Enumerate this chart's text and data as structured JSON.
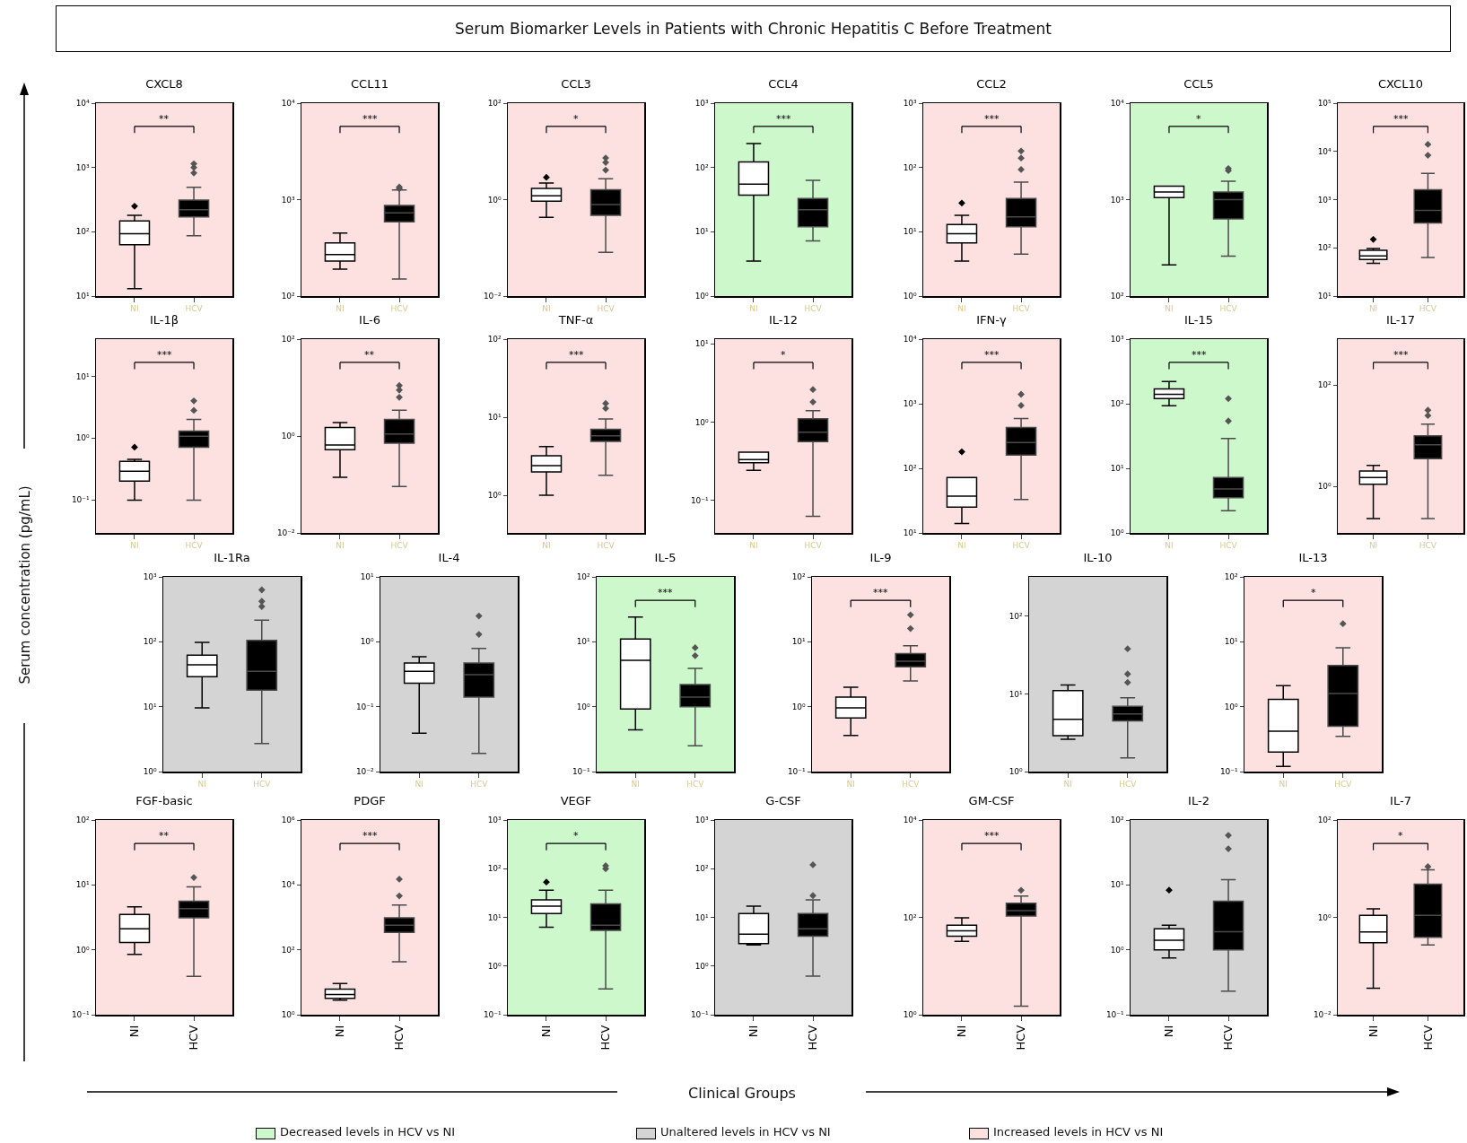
{
  "chart_data": [
    {
      "type": "box",
      "title": "CXCL8",
      "categories": [
        "NI",
        "HCV"
      ],
      "colors": [
        "#ffffff",
        "#000000"
      ],
      "boxes": [
        {
          "low": 13,
          "q1": 63,
          "median": 93,
          "q3": 148,
          "high": 180,
          "outliers": [
            250
          ]
        },
        {
          "low": 87,
          "q1": 170,
          "median": 220,
          "q3": 310,
          "high": 490,
          "outliers": [
            820,
            1000,
            1140
          ]
        }
      ],
      "log": true,
      "ylim": [
        10,
        10000
      ],
      "yticks": [
        {
          "value": 10,
          "label": "10¹"
        },
        {
          "value": 100,
          "label": "10²"
        },
        {
          "value": 1000,
          "label": "10³"
        },
        {
          "value": 10000,
          "label": "10⁴"
        }
      ],
      "grid": false,
      "marker": "diamond",
      "annotations": [
        "**"
      ],
      "bands": [
        {
          "axis": "y",
          "from": 10,
          "to": 10000,
          "color": "#fde0e0"
        }
      ]
    },
    {
      "type": "box",
      "title": "CCL11",
      "categories": [
        "NI",
        "HCV"
      ],
      "colors": [
        "#ffffff",
        "#000000"
      ],
      "boxes": [
        {
          "low": 190,
          "q1": 230,
          "median": 270,
          "q3": 355,
          "high": 450
        },
        {
          "low": 150,
          "q1": 590,
          "median": 730,
          "q3": 870,
          "high": 1260,
          "outliers": [
            1300,
            1350
          ]
        }
      ],
      "log": true,
      "ylim": [
        100,
        10000
      ],
      "yticks": [
        {
          "value": 100,
          "label": "10²"
        },
        {
          "value": 1000,
          "label": "10³"
        },
        {
          "value": 10000,
          "label": "10⁴"
        }
      ],
      "grid": false,
      "marker": "diamond",
      "annotations": [
        "***"
      ],
      "bands": [
        {
          "axis": "y",
          "from": 100,
          "to": 10000,
          "color": "#fde0e0"
        }
      ]
    },
    {
      "type": "box",
      "title": "CCL3",
      "categories": [
        "NI",
        "HCV"
      ],
      "colors": [
        "#ffffff",
        "#000000"
      ],
      "boxes": [
        {
          "low": 0.43,
          "q1": 0.93,
          "median": 1.2,
          "q3": 1.7,
          "high": 2.2,
          "outliers": [
            2.9
          ]
        },
        {
          "low": 0.081,
          "q1": 0.47,
          "median": 0.79,
          "q3": 1.6,
          "high": 2.7,
          "outliers": [
            4.1,
            5.9,
            7.3
          ]
        }
      ],
      "log": true,
      "ylim": [
        0.01,
        100
      ],
      "yticks": [
        {
          "value": 0.01,
          "label": "10⁻²"
        },
        {
          "value": 1,
          "label": "10⁰"
        },
        {
          "value": 100,
          "label": "10²"
        }
      ],
      "grid": false,
      "marker": "diamond",
      "annotations": [
        "*"
      ],
      "bands": [
        {
          "axis": "y",
          "from": 0.01,
          "to": 100,
          "color": "#fde0e0"
        }
      ]
    },
    {
      "type": "box",
      "title": "CCL4",
      "categories": [
        "NI",
        "HCV"
      ],
      "colors": [
        "#ffffff",
        "#000000"
      ],
      "boxes": [
        {
          "low": 3.5,
          "q1": 37,
          "median": 55,
          "q3": 122,
          "high": 235
        },
        {
          "low": 7.2,
          "q1": 12,
          "median": 22,
          "q3": 33,
          "high": 63
        }
      ],
      "log": true,
      "ylim": [
        1,
        1000
      ],
      "yticks": [
        {
          "value": 1,
          "label": "10⁰"
        },
        {
          "value": 10,
          "label": "10¹"
        },
        {
          "value": 100,
          "label": "10²"
        },
        {
          "value": 1000,
          "label": "10³"
        }
      ],
      "grid": false,
      "annotations": [
        "***"
      ],
      "bands": [
        {
          "axis": "y",
          "from": 1,
          "to": 1000,
          "color": "#ccf8cc"
        }
      ]
    },
    {
      "type": "box",
      "title": "CCL2",
      "categories": [
        "NI",
        "HCV"
      ],
      "colors": [
        "#ffffff",
        "#000000"
      ],
      "boxes": [
        {
          "low": 3.5,
          "q1": 6.7,
          "median": 9.3,
          "q3": 13,
          "high": 18,
          "outliers": [
            28
          ]
        },
        {
          "low": 4.5,
          "q1": 12,
          "median": 17,
          "q3": 33,
          "high": 59,
          "outliers": [
            93,
            140,
            180
          ]
        }
      ],
      "log": true,
      "ylim": [
        1,
        1000
      ],
      "yticks": [
        {
          "value": 1,
          "label": "10⁰"
        },
        {
          "value": 10,
          "label": "10¹"
        },
        {
          "value": 100,
          "label": "10²"
        },
        {
          "value": 1000,
          "label": "10³"
        }
      ],
      "grid": false,
      "marker": "diamond",
      "annotations": [
        "***"
      ],
      "bands": [
        {
          "axis": "y",
          "from": 1,
          "to": 1000,
          "color": "#fde0e0"
        }
      ]
    },
    {
      "type": "box",
      "title": "CCL5",
      "categories": [
        "NI",
        "HCV"
      ],
      "colors": [
        "#ffffff",
        "#000000"
      ],
      "boxes": [
        {
          "low": 210,
          "q1": 1050,
          "median": 1200,
          "q3": 1380,
          "high": 1380
        },
        {
          "low": 260,
          "q1": 630,
          "median": 1000,
          "q3": 1200,
          "high": 1550,
          "outliers": [
            2000,
            2100
          ]
        }
      ],
      "log": true,
      "ylim": [
        100,
        10000
      ],
      "yticks": [
        {
          "value": 100,
          "label": "10²"
        },
        {
          "value": 1000,
          "label": "10³"
        },
        {
          "value": 10000,
          "label": "10⁴"
        }
      ],
      "grid": false,
      "marker": "diamond",
      "annotations": [
        "*"
      ],
      "bands": [
        {
          "axis": "y",
          "from": 100,
          "to": 10000,
          "color": "#ccf8cc"
        }
      ]
    },
    {
      "type": "box",
      "title": "CXCL10",
      "categories": [
        "NI",
        "HCV"
      ],
      "colors": [
        "#ffffff",
        "#000000"
      ],
      "boxes": [
        {
          "low": 48,
          "q1": 57,
          "median": 68,
          "q3": 89,
          "high": 97,
          "outliers": [
            150
          ]
        },
        {
          "low": 63,
          "q1": 330,
          "median": 600,
          "q3": 1600,
          "high": 3500,
          "outliers": [
            8300,
            14000
          ]
        }
      ],
      "log": true,
      "ylim": [
        10,
        100000
      ],
      "yticks": [
        {
          "value": 10,
          "label": "10¹"
        },
        {
          "value": 100,
          "label": "10²"
        },
        {
          "value": 1000,
          "label": "10³"
        },
        {
          "value": 10000,
          "label": "10⁴"
        },
        {
          "value": 100000,
          "label": "10⁵"
        }
      ],
      "grid": false,
      "marker": "diamond",
      "annotations": [
        "***"
      ],
      "bands": [
        {
          "axis": "y",
          "from": 10,
          "to": 100000,
          "color": "#fde0e0"
        }
      ]
    },
    {
      "type": "box",
      "title": "IL-1β",
      "categories": [
        "NI",
        "HCV"
      ],
      "colors": [
        "#ffffff",
        "#000000"
      ],
      "boxes": [
        {
          "low": 0.098,
          "q1": 0.2,
          "median": 0.29,
          "q3": 0.42,
          "high": 0.45,
          "outliers": [
            0.71
          ]
        },
        {
          "low": 0.098,
          "q1": 0.71,
          "median": 1.07,
          "q3": 1.3,
          "high": 2.0,
          "outliers": [
            2.8,
            4.0
          ]
        }
      ],
      "log": true,
      "ylim": [
        0.029,
        40
      ],
      "yticks": [
        {
          "value": 0.1,
          "label": "10⁻¹"
        },
        {
          "value": 1,
          "label": "10⁰"
        },
        {
          "value": 10,
          "label": "10¹"
        }
      ],
      "grid": false,
      "marker": "diamond",
      "annotations": [
        "***"
      ],
      "bands": [
        {
          "axis": "y",
          "from": 0.029,
          "to": 40,
          "color": "#fde0e0"
        }
      ]
    },
    {
      "type": "box",
      "title": "IL-6",
      "categories": [
        "NI",
        "HCV"
      ],
      "colors": [
        "#ffffff",
        "#000000"
      ],
      "boxes": [
        {
          "low": 0.14,
          "q1": 0.52,
          "median": 0.65,
          "q3": 1.5,
          "high": 1.9
        },
        {
          "low": 0.091,
          "q1": 0.71,
          "median": 1.1,
          "q3": 2.2,
          "high": 3.4,
          "outliers": [
            6.3,
            8.9,
            11
          ]
        }
      ],
      "log": true,
      "ylim": [
        0.01,
        100
      ],
      "yticks": [
        {
          "value": 0.01,
          "label": "10⁻²"
        },
        {
          "value": 1,
          "label": "10⁰"
        },
        {
          "value": 100,
          "label": "10²"
        }
      ],
      "grid": false,
      "marker": "diamond",
      "annotations": [
        "**"
      ],
      "bands": [
        {
          "axis": "y",
          "from": 0.01,
          "to": 100,
          "color": "#fde0e0"
        }
      ]
    },
    {
      "type": "box",
      "title": "TNF-α",
      "categories": [
        "NI",
        "HCV"
      ],
      "colors": [
        "#ffffff",
        "#000000"
      ],
      "boxes": [
        {
          "low": 1.0,
          "q1": 2.0,
          "median": 2.4,
          "q3": 3.2,
          "high": 4.2
        },
        {
          "low": 1.8,
          "q1": 4.9,
          "median": 5.8,
          "q3": 7.0,
          "high": 9.5,
          "outliers": [
            13,
            15
          ]
        }
      ],
      "log": true,
      "ylim": [
        0.33,
        100
      ],
      "yticks": [
        {
          "value": 1,
          "label": "10⁰"
        },
        {
          "value": 10,
          "label": "10¹"
        },
        {
          "value": 100,
          "label": "10²"
        }
      ],
      "grid": false,
      "marker": "diamond",
      "annotations": [
        "***"
      ],
      "bands": [
        {
          "axis": "y",
          "from": 0.33,
          "to": 100,
          "color": "#fde0e0"
        }
      ]
    },
    {
      "type": "box",
      "title": "IL-12",
      "categories": [
        "NI",
        "HCV"
      ],
      "colors": [
        "#ffffff",
        "#000000"
      ],
      "boxes": [
        {
          "low": 0.24,
          "q1": 0.3,
          "median": 0.33,
          "q3": 0.41,
          "high": 0.41
        },
        {
          "low": 0.062,
          "q1": 0.56,
          "median": 0.74,
          "q3": 1.1,
          "high": 1.4,
          "outliers": [
            1.8,
            2.6
          ]
        }
      ],
      "log": true,
      "ylim": [
        0.038,
        11.5
      ],
      "yticks": [
        {
          "value": 0.1,
          "label": "10⁻¹"
        },
        {
          "value": 1,
          "label": "10⁰"
        },
        {
          "value": 10,
          "label": "10¹"
        }
      ],
      "grid": false,
      "marker": "diamond",
      "annotations": [
        "*"
      ],
      "bands": [
        {
          "axis": "y",
          "from": 0.038,
          "to": 11.5,
          "color": "#fde0e0"
        }
      ]
    },
    {
      "type": "box",
      "title": "IFN-γ",
      "categories": [
        "NI",
        "HCV"
      ],
      "colors": [
        "#ffffff",
        "#000000"
      ],
      "boxes": [
        {
          "low": 14,
          "q1": 25,
          "median": 37,
          "q3": 72,
          "high": 72,
          "outliers": [
            180
          ]
        },
        {
          "low": 33,
          "q1": 160,
          "median": 250,
          "q3": 430,
          "high": 590,
          "outliers": [
            940,
            1400
          ]
        }
      ],
      "log": true,
      "ylim": [
        10,
        10000
      ],
      "yticks": [
        {
          "value": 10,
          "label": "10¹"
        },
        {
          "value": 100,
          "label": "10²"
        },
        {
          "value": 1000,
          "label": "10³"
        },
        {
          "value": 10000,
          "label": "10⁴"
        }
      ],
      "grid": false,
      "marker": "diamond",
      "annotations": [
        "***"
      ],
      "bands": [
        {
          "axis": "y",
          "from": 10,
          "to": 10000,
          "color": "#fde0e0"
        }
      ]
    },
    {
      "type": "box",
      "title": "IL-15",
      "categories": [
        "NI",
        "HCV"
      ],
      "colors": [
        "#ffffff",
        "#000000"
      ],
      "boxes": [
        {
          "low": 93,
          "q1": 120,
          "median": 140,
          "q3": 170,
          "high": 220
        },
        {
          "low": 2.2,
          "q1": 3.5,
          "median": 4.8,
          "q3": 7.2,
          "high": 29,
          "outliers": [
            54,
            120
          ]
        }
      ],
      "log": true,
      "ylim": [
        1,
        1000
      ],
      "yticks": [
        {
          "value": 1,
          "label": "10⁰"
        },
        {
          "value": 10,
          "label": "10¹"
        },
        {
          "value": 100,
          "label": "10²"
        },
        {
          "value": 1000,
          "label": "10³"
        }
      ],
      "grid": false,
      "marker": "diamond",
      "annotations": [
        "***"
      ],
      "bands": [
        {
          "axis": "y",
          "from": 1,
          "to": 1000,
          "color": "#ccf8cc"
        }
      ]
    },
    {
      "type": "box",
      "title": "IL-17",
      "categories": [
        "NI",
        "HCV"
      ],
      "colors": [
        "#ffffff",
        "#000000"
      ],
      "boxes": [
        {
          "low": 0.23,
          "q1": 1.1,
          "median": 1.5,
          "q3": 2.0,
          "high": 2.6
        },
        {
          "low": 0.23,
          "q1": 3.5,
          "median": 6.6,
          "q3": 10,
          "high": 17,
          "outliers": [
            25,
            32
          ]
        }
      ],
      "log": true,
      "ylim": [
        0.12,
        810
      ],
      "yticks": [
        {
          "value": 1,
          "label": "10⁰"
        },
        {
          "value": 100,
          "label": "10²"
        }
      ],
      "grid": false,
      "marker": "diamond",
      "annotations": [
        "***"
      ],
      "bands": [
        {
          "axis": "y",
          "from": 0.12,
          "to": 810,
          "color": "#fde0e0"
        }
      ]
    },
    {
      "type": "box",
      "title": "IL-1Ra",
      "categories": [
        "NI",
        "HCV"
      ],
      "colors": [
        "#ffffff",
        "#000000"
      ],
      "boxes": [
        {
          "low": 9.6,
          "q1": 29,
          "median": 44,
          "q3": 62,
          "high": 98
        },
        {
          "low": 2.7,
          "q1": 18,
          "median": 35,
          "q3": 105,
          "high": 215,
          "outliers": [
            350,
            420,
            630
          ]
        }
      ],
      "log": true,
      "ylim": [
        1,
        1000
      ],
      "yticks": [
        {
          "value": 1,
          "label": "10⁰"
        },
        {
          "value": 10,
          "label": "10¹"
        },
        {
          "value": 100,
          "label": "10²"
        },
        {
          "value": 1000,
          "label": "10³"
        }
      ],
      "grid": false,
      "marker": "diamond",
      "bands": [
        {
          "axis": "y",
          "from": 1,
          "to": 1000,
          "color": "#d4d4d4"
        }
      ]
    },
    {
      "type": "box",
      "title": "IL-4",
      "categories": [
        "NI",
        "HCV"
      ],
      "colors": [
        "#ffffff",
        "#000000"
      ],
      "boxes": [
        {
          "low": 0.039,
          "q1": 0.23,
          "median": 0.35,
          "q3": 0.47,
          "high": 0.59
        },
        {
          "low": 0.019,
          "q1": 0.14,
          "median": 0.31,
          "q3": 0.47,
          "high": 0.79,
          "outliers": [
            1.3,
            2.5
          ]
        }
      ],
      "log": true,
      "ylim": [
        0.01,
        10
      ],
      "yticks": [
        {
          "value": 0.01,
          "label": "10⁻²"
        },
        {
          "value": 0.1,
          "label": "10⁻¹"
        },
        {
          "value": 1,
          "label": "10⁰"
        },
        {
          "value": 10,
          "label": "10¹"
        }
      ],
      "grid": false,
      "marker": "diamond",
      "bands": [
        {
          "axis": "y",
          "from": 0.01,
          "to": 10,
          "color": "#d4d4d4"
        }
      ]
    },
    {
      "type": "box",
      "title": "IL-5",
      "categories": [
        "NI",
        "HCV"
      ],
      "colors": [
        "#ffffff",
        "#000000"
      ],
      "boxes": [
        {
          "low": 0.44,
          "q1": 0.92,
          "median": 5.2,
          "q3": 11,
          "high": 24
        },
        {
          "low": 0.25,
          "q1": 1.0,
          "median": 1.4,
          "q3": 2.2,
          "high": 3.9,
          "outliers": [
            6.1,
            8.1
          ]
        }
      ],
      "log": true,
      "ylim": [
        0.1,
        100
      ],
      "yticks": [
        {
          "value": 0.1,
          "label": "10⁻¹"
        },
        {
          "value": 1,
          "label": "10⁰"
        },
        {
          "value": 10,
          "label": "10¹"
        },
        {
          "value": 100,
          "label": "10²"
        }
      ],
      "grid": false,
      "marker": "diamond",
      "annotations": [
        "***"
      ],
      "bands": [
        {
          "axis": "y",
          "from": 0.1,
          "to": 100,
          "color": "#ccf8cc"
        }
      ]
    },
    {
      "type": "box",
      "title": "IL-9",
      "categories": [
        "NI",
        "HCV"
      ],
      "colors": [
        "#ffffff",
        "#000000"
      ],
      "boxes": [
        {
          "low": 0.36,
          "q1": 0.67,
          "median": 0.96,
          "q3": 1.4,
          "high": 2.0
        },
        {
          "low": 2.5,
          "q1": 4.1,
          "median": 5.0,
          "q3": 6.6,
          "high": 8.7,
          "outliers": [
            16,
            26
          ]
        }
      ],
      "log": true,
      "ylim": [
        0.1,
        100
      ],
      "yticks": [
        {
          "value": 0.1,
          "label": "10⁻¹"
        },
        {
          "value": 1,
          "label": "10⁰"
        },
        {
          "value": 10,
          "label": "10¹"
        },
        {
          "value": 100,
          "label": "10²"
        }
      ],
      "grid": false,
      "marker": "diamond",
      "annotations": [
        "***"
      ],
      "bands": [
        {
          "axis": "y",
          "from": 0.1,
          "to": 100,
          "color": "#fde0e0"
        }
      ]
    },
    {
      "type": "box",
      "title": "IL-10",
      "categories": [
        "NI",
        "HCV"
      ],
      "colors": [
        "#ffffff",
        "#000000"
      ],
      "boxes": [
        {
          "low": 2.6,
          "q1": 2.9,
          "median": 4.7,
          "q3": 11,
          "high": 13
        },
        {
          "low": 1.5,
          "q1": 4.5,
          "median": 5.5,
          "q3": 6.9,
          "high": 8.9,
          "outliers": [
            14,
            18,
            38
          ]
        }
      ],
      "log": true,
      "ylim": [
        1,
        320
      ],
      "yticks": [
        {
          "value": 1,
          "label": "10⁰"
        },
        {
          "value": 10,
          "label": "10¹"
        },
        {
          "value": 100,
          "label": "10²"
        }
      ],
      "grid": false,
      "marker": "diamond",
      "bands": [
        {
          "axis": "y",
          "from": 1,
          "to": 320,
          "color": "#d4d4d4"
        }
      ]
    },
    {
      "type": "box",
      "title": "IL-13",
      "categories": [
        "NI",
        "HCV"
      ],
      "colors": [
        "#ffffff",
        "#000000"
      ],
      "boxes": [
        {
          "low": 0.12,
          "q1": 0.2,
          "median": 0.42,
          "q3": 1.3,
          "high": 2.1
        },
        {
          "low": 0.35,
          "q1": 0.5,
          "median": 1.6,
          "q3": 4.3,
          "high": 8.1,
          "outliers": [
            19
          ]
        }
      ],
      "log": true,
      "ylim": [
        0.1,
        100
      ],
      "yticks": [
        {
          "value": 0.1,
          "label": "10⁻¹"
        },
        {
          "value": 1,
          "label": "10⁰"
        },
        {
          "value": 10,
          "label": "10¹"
        },
        {
          "value": 100,
          "label": "10²"
        }
      ],
      "grid": false,
      "marker": "diamond",
      "annotations": [
        "*"
      ],
      "bands": [
        {
          "axis": "y",
          "from": 0.1,
          "to": 100,
          "color": "#fde0e0"
        }
      ]
    },
    {
      "type": "box",
      "title": "FGF-basic",
      "categories": [
        "NI",
        "HCV"
      ],
      "colors": [
        "#ffffff",
        "#000000"
      ],
      "boxes": [
        {
          "low": 0.85,
          "q1": 1.3,
          "median": 2.1,
          "q3": 3.5,
          "high": 4.6
        },
        {
          "low": 0.39,
          "q1": 3.1,
          "median": 4.3,
          "q3": 5.6,
          "high": 9.3,
          "outliers": [
            13
          ]
        }
      ],
      "log": true,
      "ylim": [
        0.1,
        100
      ],
      "yticks": [
        {
          "value": 0.1,
          "label": "10⁻¹"
        },
        {
          "value": 1,
          "label": "10⁰"
        },
        {
          "value": 10,
          "label": "10¹"
        },
        {
          "value": 100,
          "label": "10²"
        }
      ],
      "grid": false,
      "marker": "diamond",
      "annotations": [
        "**"
      ],
      "bands": [
        {
          "axis": "y",
          "from": 0.1,
          "to": 100,
          "color": "#fde0e0"
        }
      ]
    },
    {
      "type": "box",
      "title": "PDGF",
      "categories": [
        "NI",
        "HCV"
      ],
      "colors": [
        "#ffffff",
        "#000000"
      ],
      "boxes": [
        {
          "low": 2.8,
          "q1": 3.2,
          "median": 4.2,
          "q3": 6.1,
          "high": 9.1
        },
        {
          "low": 43,
          "q1": 345,
          "median": 575,
          "q3": 970,
          "high": 2400,
          "outliers": [
            4600,
            15000
          ]
        }
      ],
      "log": true,
      "ylim": [
        1,
        1000000
      ],
      "yticks": [
        {
          "value": 1,
          "label": "10⁰"
        },
        {
          "value": 100,
          "label": "10²"
        },
        {
          "value": 10000,
          "label": "10⁴"
        },
        {
          "value": 1000000,
          "label": "10⁶"
        }
      ],
      "grid": false,
      "marker": "diamond",
      "annotations": [
        "***"
      ],
      "bands": [
        {
          "axis": "y",
          "from": 1,
          "to": 1000000,
          "color": "#fde0e0"
        }
      ]
    },
    {
      "type": "box",
      "title": "VEGF",
      "categories": [
        "NI",
        "HCV"
      ],
      "colors": [
        "#ffffff",
        "#000000"
      ],
      "boxes": [
        {
          "low": 6.3,
          "q1": 12,
          "median": 17,
          "q3": 23,
          "high": 36,
          "outliers": [
            53
          ]
        },
        {
          "low": 0.34,
          "q1": 5.4,
          "median": 6.9,
          "q3": 19,
          "high": 36,
          "outliers": [
            100,
            115
          ]
        }
      ],
      "log": true,
      "ylim": [
        0.1,
        1000
      ],
      "yticks": [
        {
          "value": 0.1,
          "label": "10⁻¹"
        },
        {
          "value": 1,
          "label": "10⁰"
        },
        {
          "value": 10,
          "label": "10¹"
        },
        {
          "value": 100,
          "label": "10²"
        },
        {
          "value": 1000,
          "label": "10³"
        }
      ],
      "grid": false,
      "marker": "diamond",
      "annotations": [
        "*"
      ],
      "bands": [
        {
          "axis": "y",
          "from": 0.1,
          "to": 1000,
          "color": "#ccf8cc"
        }
      ]
    },
    {
      "type": "box",
      "title": "G-CSF",
      "categories": [
        "NI",
        "HCV"
      ],
      "colors": [
        "#ffffff",
        "#000000"
      ],
      "boxes": [
        {
          "low": 2.7,
          "q1": 2.9,
          "median": 4.5,
          "q3": 12,
          "high": 17
        },
        {
          "low": 0.62,
          "q1": 4.1,
          "median": 5.8,
          "q3": 12,
          "high": 23,
          "outliers": [
            28,
            120
          ]
        }
      ],
      "log": true,
      "ylim": [
        0.1,
        1000
      ],
      "yticks": [
        {
          "value": 0.1,
          "label": "10⁻¹"
        },
        {
          "value": 1,
          "label": "10⁰"
        },
        {
          "value": 10,
          "label": "10¹"
        },
        {
          "value": 100,
          "label": "10²"
        },
        {
          "value": 1000,
          "label": "10³"
        }
      ],
      "grid": false,
      "marker": "diamond",
      "bands": [
        {
          "axis": "y",
          "from": 0.1,
          "to": 1000,
          "color": "#d4d4d4"
        }
      ]
    },
    {
      "type": "box",
      "title": "GM-CSF",
      "categories": [
        "NI",
        "HCV"
      ],
      "colors": [
        "#ffffff",
        "#000000"
      ],
      "boxes": [
        {
          "low": 32,
          "q1": 41,
          "median": 53,
          "q3": 69,
          "high": 98
        },
        {
          "low": 1.5,
          "q1": 107,
          "median": 138,
          "q3": 195,
          "high": 275,
          "outliers": [
            360
          ]
        }
      ],
      "log": true,
      "ylim": [
        1,
        10000
      ],
      "yticks": [
        {
          "value": 1,
          "label": "10⁰"
        },
        {
          "value": 100,
          "label": "10²"
        },
        {
          "value": 10000,
          "label": "10⁴"
        }
      ],
      "grid": false,
      "marker": "diamond",
      "annotations": [
        "***"
      ],
      "bands": [
        {
          "axis": "y",
          "from": 1,
          "to": 10000,
          "color": "#fde0e0"
        }
      ]
    },
    {
      "type": "box",
      "title": "IL-2",
      "categories": [
        "NI",
        "HCV"
      ],
      "colors": [
        "#ffffff",
        "#000000"
      ],
      "boxes": [
        {
          "low": 0.75,
          "q1": 1.0,
          "median": 1.4,
          "q3": 2.1,
          "high": 2.4,
          "outliers": [
            8.3
          ]
        },
        {
          "low": 0.23,
          "q1": 1.0,
          "median": 1.9,
          "q3": 5.6,
          "high": 12,
          "outliers": [
            36,
            58
          ]
        }
      ],
      "log": true,
      "ylim": [
        0.1,
        100
      ],
      "yticks": [
        {
          "value": 0.1,
          "label": "10⁻¹"
        },
        {
          "value": 1,
          "label": "10⁰"
        },
        {
          "value": 10,
          "label": "10¹"
        },
        {
          "value": 100,
          "label": "10²"
        }
      ],
      "grid": false,
      "marker": "diamond",
      "bands": [
        {
          "axis": "y",
          "from": 0.1,
          "to": 100,
          "color": "#d4d4d4"
        }
      ]
    },
    {
      "type": "box",
      "title": "IL-7",
      "categories": [
        "NI",
        "HCV"
      ],
      "colors": [
        "#ffffff",
        "#000000"
      ],
      "boxes": [
        {
          "low": 0.035,
          "q1": 0.3,
          "median": 0.5,
          "q3": 1.1,
          "high": 1.5
        },
        {
          "low": 0.27,
          "q1": 0.39,
          "median": 1.1,
          "q3": 4.8,
          "high": 9.5,
          "outliers": [
            11
          ]
        }
      ],
      "log": true,
      "ylim": [
        0.01,
        100
      ],
      "yticks": [
        {
          "value": 0.01,
          "label": "10⁻²"
        },
        {
          "value": 1,
          "label": "10⁰"
        },
        {
          "value": 100,
          "label": "10²"
        }
      ],
      "grid": false,
      "marker": "diamond",
      "annotations": [
        "*"
      ],
      "bands": [
        {
          "axis": "y",
          "from": 0.01,
          "to": 100,
          "color": "#fde0e0"
        }
      ]
    },
    {
      "type": "other",
      "title": "Serum Biomarker Levels in Patients with Chronic Hepatitis C Before Treatment",
      "xlabel": "Clinical Groups",
      "ylabel": "Serum concentration (pg/mL)",
      "categories": [
        "Decreased levels in HCV vs NI",
        "Unaltered levels in HCV vs NI",
        "Increased levels in HCV vs NI"
      ],
      "colors": [
        "#ccf8cc",
        "#d4d4d4",
        "#fde0e0"
      ]
    }
  ]
}
